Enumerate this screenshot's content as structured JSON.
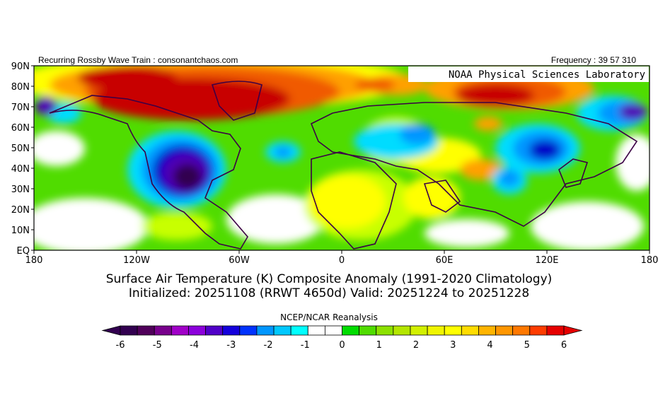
{
  "header": {
    "left": "Recurring Rossby Wave Train : consonantchaos.com",
    "right": "Frequency : 39 57 310",
    "lab_label": "NOAA Physical Sciences Laboratory"
  },
  "map": {
    "lat_labels": [
      "90N",
      "80N",
      "70N",
      "60N",
      "50N",
      "40N",
      "30N",
      "20N",
      "10N",
      "EQ"
    ],
    "lon_labels": [
      "180",
      "120W",
      "60W",
      "0",
      "60E",
      "120E",
      "180"
    ],
    "colors": {
      "strong_warm": "#c80000",
      "warm": "#f05a00",
      "orange": "#ffa000",
      "yellow": "#ffff00",
      "lime": "#c8ff00",
      "green": "#50dc00",
      "neutral": "#ffffff",
      "cyan": "#00dcff",
      "blue": "#0096ff",
      "deep_blue": "#0000c8",
      "purple": "#5000b4",
      "deep_purple": "#320050",
      "coast": "#3c0046"
    }
  },
  "titles": {
    "line1": "Surface Air Temperature (K) Composite Anomaly (1991-2020 Climatology)",
    "line2": "Initialized: 20251108 (RRWT 4650d) Valid: 20251224 to 20251228"
  },
  "colorbar": {
    "title": "NCEP/NCAR Reanalysis",
    "tick_labels": [
      "-6",
      "-5",
      "-4",
      "-3",
      "-2",
      "-1",
      "0",
      "1",
      "2",
      "3",
      "4",
      "5",
      "6"
    ],
    "segments": [
      "#320050",
      "#50005a",
      "#78008c",
      "#a000c8",
      "#8c00dc",
      "#5000c8",
      "#1400dc",
      "#0032ff",
      "#0096ff",
      "#00c8ff",
      "#00ffff",
      "#ffffff",
      "#ffffff",
      "#00dc00",
      "#50dc00",
      "#8ce100",
      "#b4e600",
      "#d2f000",
      "#f0f500",
      "#ffff00",
      "#ffdc00",
      "#ffb400",
      "#ff9600",
      "#ff7800",
      "#ff3c00",
      "#e60000"
    ]
  }
}
